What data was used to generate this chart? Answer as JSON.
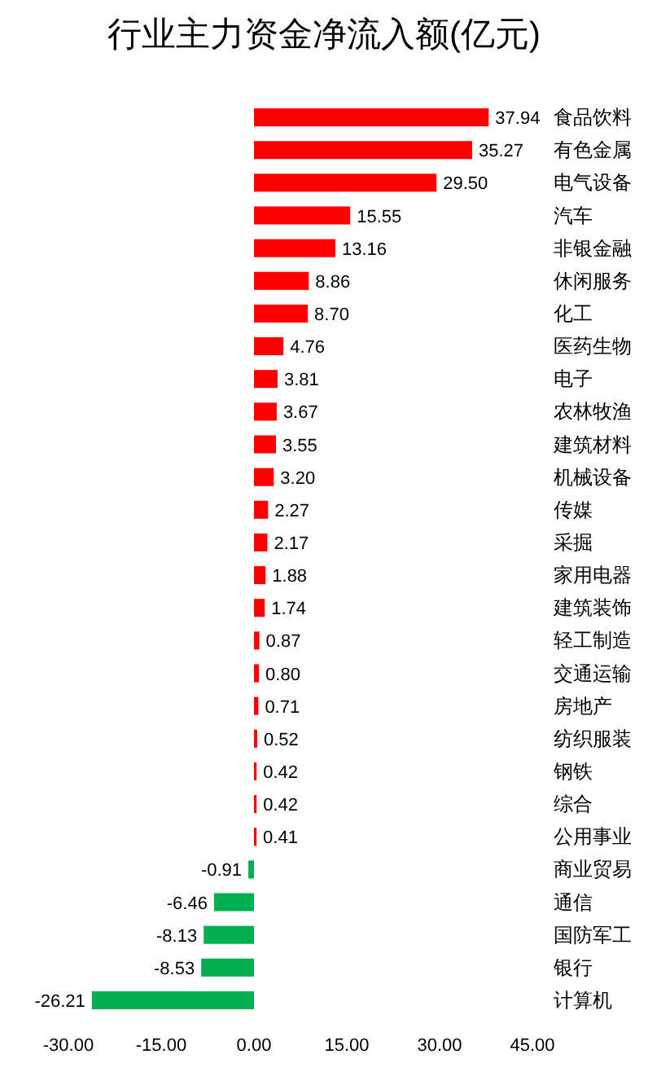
{
  "chart_data": {
    "type": "bar",
    "orientation": "horizontal",
    "title": "行业主力资金净流入额(亿元)",
    "categories": [
      "食品饮料",
      "有色金属",
      "电气设备",
      "汽车",
      "非银金融",
      "休闲服务",
      "化工",
      "医药生物",
      "电子",
      "农林牧渔",
      "建筑材料",
      "机械设备",
      "传媒",
      "采掘",
      "家用电器",
      "建筑装饰",
      "轻工制造",
      "交通运输",
      "房地产",
      "纺织服装",
      "钢铁",
      "综合",
      "公用事业",
      "商业贸易",
      "通信",
      "国防军工",
      "银行",
      "计算机"
    ],
    "values": [
      37.94,
      35.27,
      29.5,
      15.55,
      13.16,
      8.86,
      8.7,
      4.76,
      3.81,
      3.67,
      3.55,
      3.2,
      2.27,
      2.17,
      1.88,
      1.74,
      0.87,
      0.8,
      0.71,
      0.52,
      0.42,
      0.42,
      0.41,
      -0.91,
      -6.46,
      -8.13,
      -8.53,
      -26.21
    ],
    "value_labels": [
      "37.94",
      "35.27",
      "29.50",
      "15.55",
      "13.16",
      "8.86",
      "8.70",
      "4.76",
      "3.81",
      "3.67",
      "3.55",
      "3.20",
      "2.27",
      "2.17",
      "1.88",
      "1.74",
      "0.87",
      "0.80",
      "0.71",
      "0.52",
      "0.42",
      "0.42",
      "0.41",
      "-0.91",
      "-6.46",
      "-8.13",
      "-8.53",
      "-26.21"
    ],
    "colors": [
      "#ff0000",
      "#ff0000",
      "#ff0000",
      "#ff0000",
      "#ff0000",
      "#ff0000",
      "#ff0000",
      "#ff0000",
      "#ff0000",
      "#ff0000",
      "#ff0000",
      "#ff0000",
      "#ff0000",
      "#ff0000",
      "#ff0000",
      "#ff0000",
      "#ff0000",
      "#ff0000",
      "#ff0000",
      "#ff0000",
      "#ff0000",
      "#ff0000",
      "#ff0000",
      "#00b050",
      "#00b050",
      "#00b050",
      "#00b050",
      "#00b050"
    ],
    "xlim": [
      -30,
      45
    ],
    "xticks": [
      {
        "value": -30,
        "label": "-30.00"
      },
      {
        "value": -15,
        "label": "-15.00"
      },
      {
        "value": 0,
        "label": "0.00"
      },
      {
        "value": 15,
        "label": "15.00"
      },
      {
        "value": 30,
        "label": "30.00"
      },
      {
        "value": 45,
        "label": "45.00"
      }
    ],
    "grid": false
  }
}
